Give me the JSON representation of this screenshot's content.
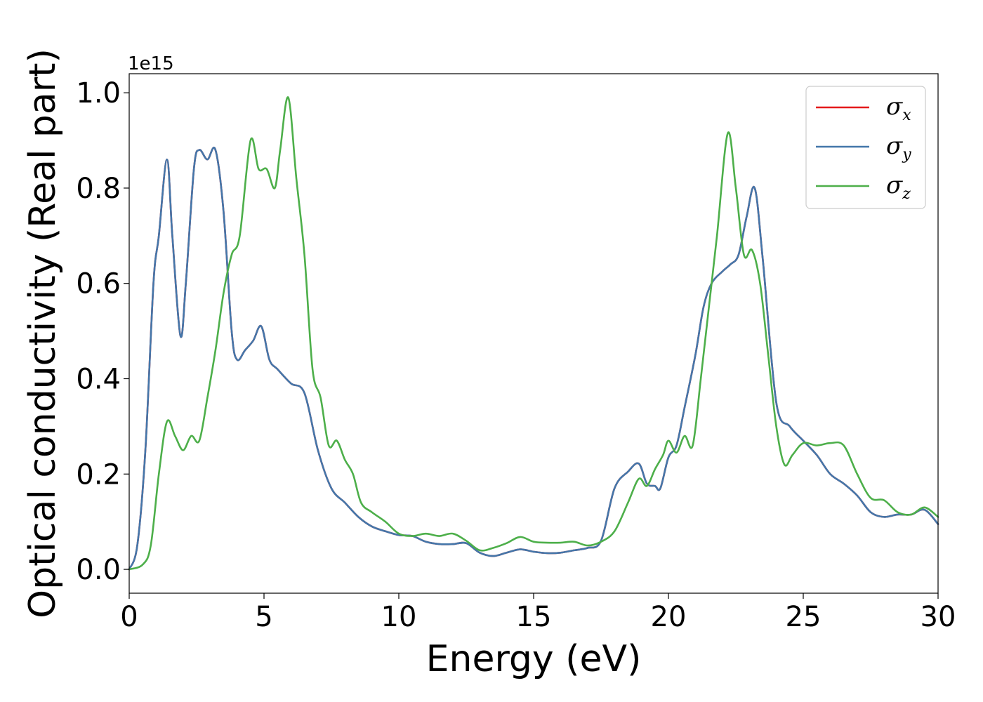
{
  "chart_data": {
    "type": "line",
    "title": "",
    "xlabel": "Energy (eV)",
    "ylabel": "Optical conductivity (Real part)",
    "y_offset_label": "1e15",
    "xlim": [
      0,
      30
    ],
    "ylim": [
      -0.05,
      1.04
    ],
    "x_ticks": [
      0,
      5,
      10,
      15,
      20,
      25,
      30
    ],
    "x_tick_labels": [
      "0",
      "5",
      "10",
      "15",
      "20",
      "25",
      "30"
    ],
    "y_ticks": [
      0.0,
      0.2,
      0.4,
      0.6,
      0.8,
      1.0
    ],
    "y_tick_labels": [
      "0.0",
      "0.2",
      "0.4",
      "0.6",
      "0.8",
      "1.0"
    ],
    "grid": false,
    "legend_position": "top-right",
    "series": [
      {
        "name": "σx",
        "legend_symbol": "σ",
        "legend_subscript": "x",
        "color": "#e41a1c",
        "x": [
          0,
          0.3,
          0.6,
          0.9,
          1.1,
          1.4,
          1.6,
          1.9,
          2.1,
          2.4,
          2.6,
          2.9,
          3.2,
          3.5,
          3.8,
          4.0,
          4.3,
          4.6,
          4.9,
          5.2,
          5.5,
          6.0,
          6.5,
          7.0,
          7.5,
          8.0,
          8.5,
          9.0,
          9.5,
          10.0,
          10.5,
          11.0,
          11.5,
          12.0,
          12.5,
          13.0,
          13.5,
          14.0,
          14.5,
          15.0,
          15.5,
          16.0,
          16.5,
          17.0,
          17.5,
          18.0,
          18.5,
          18.9,
          19.2,
          19.5,
          19.7,
          20.0,
          20.3,
          20.6,
          21.0,
          21.3,
          21.6,
          22.0,
          22.3,
          22.6,
          22.9,
          23.2,
          23.5,
          24.0,
          24.5,
          25.0,
          25.5,
          26.0,
          26.5,
          27.0,
          27.5,
          28.0,
          28.5,
          29.0,
          29.5,
          30.0
        ],
        "values": [
          0.0,
          0.05,
          0.25,
          0.6,
          0.7,
          0.86,
          0.7,
          0.49,
          0.6,
          0.84,
          0.88,
          0.86,
          0.88,
          0.75,
          0.5,
          0.44,
          0.46,
          0.48,
          0.51,
          0.44,
          0.42,
          0.39,
          0.37,
          0.25,
          0.17,
          0.14,
          0.11,
          0.09,
          0.08,
          0.072,
          0.07,
          0.058,
          0.053,
          0.053,
          0.055,
          0.035,
          0.028,
          0.035,
          0.042,
          0.037,
          0.034,
          0.035,
          0.04,
          0.045,
          0.06,
          0.17,
          0.205,
          0.222,
          0.18,
          0.175,
          0.17,
          0.235,
          0.26,
          0.34,
          0.45,
          0.55,
          0.6,
          0.625,
          0.64,
          0.66,
          0.74,
          0.8,
          0.65,
          0.35,
          0.3,
          0.27,
          0.24,
          0.2,
          0.18,
          0.155,
          0.12,
          0.11,
          0.115,
          0.115,
          0.125,
          0.095
        ]
      },
      {
        "name": "σy",
        "legend_symbol": "σ",
        "legend_subscript": "y",
        "color": "#4477aa",
        "x": [
          0,
          0.3,
          0.6,
          0.9,
          1.1,
          1.4,
          1.6,
          1.9,
          2.1,
          2.4,
          2.6,
          2.9,
          3.2,
          3.5,
          3.8,
          4.0,
          4.3,
          4.6,
          4.9,
          5.2,
          5.5,
          6.0,
          6.5,
          7.0,
          7.5,
          8.0,
          8.5,
          9.0,
          9.5,
          10.0,
          10.5,
          11.0,
          11.5,
          12.0,
          12.5,
          13.0,
          13.5,
          14.0,
          14.5,
          15.0,
          15.5,
          16.0,
          16.5,
          17.0,
          17.5,
          18.0,
          18.5,
          18.9,
          19.2,
          19.5,
          19.7,
          20.0,
          20.3,
          20.6,
          21.0,
          21.3,
          21.6,
          22.0,
          22.3,
          22.6,
          22.9,
          23.2,
          23.5,
          24.0,
          24.5,
          25.0,
          25.5,
          26.0,
          26.5,
          27.0,
          27.5,
          28.0,
          28.5,
          29.0,
          29.5,
          30.0
        ],
        "values": [
          0.0,
          0.05,
          0.25,
          0.6,
          0.7,
          0.86,
          0.7,
          0.49,
          0.6,
          0.84,
          0.88,
          0.86,
          0.88,
          0.75,
          0.5,
          0.44,
          0.46,
          0.48,
          0.51,
          0.44,
          0.42,
          0.39,
          0.37,
          0.25,
          0.17,
          0.14,
          0.11,
          0.09,
          0.08,
          0.072,
          0.07,
          0.058,
          0.053,
          0.053,
          0.055,
          0.035,
          0.028,
          0.035,
          0.042,
          0.037,
          0.034,
          0.035,
          0.04,
          0.045,
          0.06,
          0.17,
          0.205,
          0.222,
          0.18,
          0.175,
          0.17,
          0.235,
          0.26,
          0.34,
          0.45,
          0.55,
          0.6,
          0.625,
          0.64,
          0.66,
          0.74,
          0.8,
          0.65,
          0.35,
          0.3,
          0.27,
          0.24,
          0.2,
          0.18,
          0.155,
          0.12,
          0.11,
          0.115,
          0.115,
          0.125,
          0.095
        ]
      },
      {
        "name": "σz",
        "legend_symbol": "σ",
        "legend_subscript": "z",
        "color": "#4daf4a",
        "x": [
          0,
          0.5,
          0.8,
          1.1,
          1.4,
          1.7,
          2.0,
          2.3,
          2.6,
          2.9,
          3.2,
          3.5,
          3.8,
          4.1,
          4.5,
          4.8,
          5.1,
          5.4,
          5.6,
          5.9,
          6.2,
          6.5,
          6.8,
          7.1,
          7.4,
          7.7,
          8.0,
          8.3,
          8.6,
          9.0,
          9.5,
          10.0,
          10.5,
          11.0,
          11.5,
          12.0,
          12.5,
          13.0,
          13.5,
          14.0,
          14.5,
          15.0,
          15.5,
          16.0,
          16.5,
          17.0,
          17.5,
          18.0,
          18.5,
          18.9,
          19.2,
          19.5,
          19.8,
          20.0,
          20.3,
          20.6,
          20.9,
          21.2,
          21.5,
          21.8,
          22.2,
          22.5,
          22.8,
          23.1,
          23.4,
          23.7,
          24.0,
          24.3,
          24.6,
          25.0,
          25.5,
          26.0,
          26.5,
          27.0,
          27.5,
          28.0,
          28.5,
          29.0,
          29.5,
          30.0
        ],
        "values": [
          0.0,
          0.01,
          0.05,
          0.2,
          0.31,
          0.28,
          0.25,
          0.28,
          0.27,
          0.36,
          0.46,
          0.58,
          0.66,
          0.7,
          0.9,
          0.84,
          0.84,
          0.8,
          0.88,
          0.99,
          0.82,
          0.66,
          0.42,
          0.36,
          0.26,
          0.27,
          0.23,
          0.2,
          0.14,
          0.12,
          0.1,
          0.075,
          0.07,
          0.075,
          0.07,
          0.075,
          0.06,
          0.04,
          0.045,
          0.055,
          0.068,
          0.058,
          0.056,
          0.056,
          0.058,
          0.05,
          0.058,
          0.08,
          0.14,
          0.19,
          0.175,
          0.21,
          0.24,
          0.27,
          0.245,
          0.28,
          0.26,
          0.4,
          0.55,
          0.7,
          0.915,
          0.8,
          0.66,
          0.67,
          0.6,
          0.45,
          0.3,
          0.22,
          0.24,
          0.265,
          0.26,
          0.265,
          0.26,
          0.2,
          0.15,
          0.145,
          0.12,
          0.115,
          0.13,
          0.11
        ]
      }
    ]
  }
}
